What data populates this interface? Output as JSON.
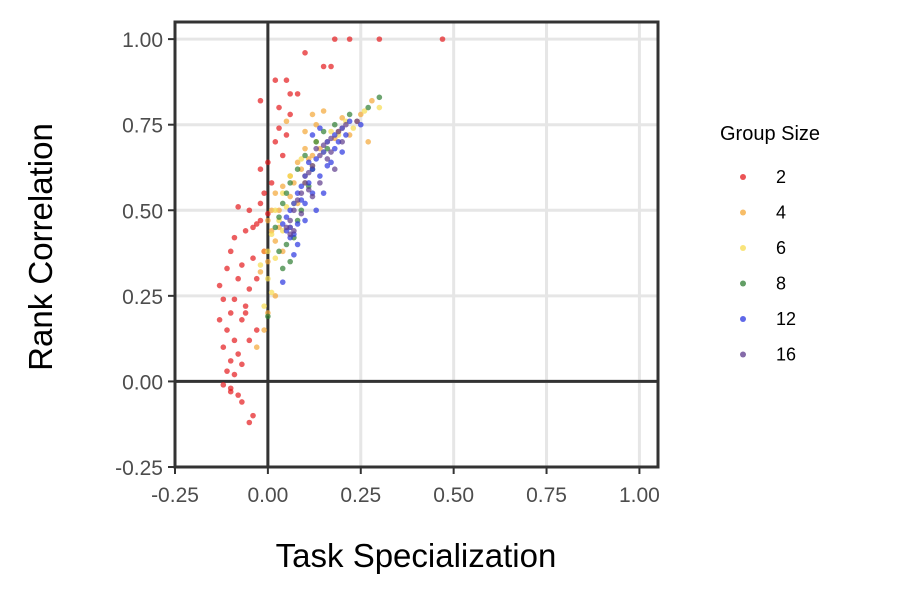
{
  "chart_data": {
    "type": "scatter",
    "xlabel": "Task Specialization",
    "ylabel": "Rank Correlation",
    "xlim": [
      -0.25,
      1.05
    ],
    "ylim": [
      -0.25,
      1.05
    ],
    "x_ticks": [
      "-0.25",
      "0.00",
      "0.25",
      "0.50",
      "0.75",
      "1.00"
    ],
    "y_ticks": [
      "-0.25",
      "0.00",
      "0.25",
      "0.50",
      "0.75",
      "1.00"
    ],
    "x_tick_values": [
      -0.25,
      0,
      0.25,
      0.5,
      0.75,
      1.0
    ],
    "y_tick_values": [
      -0.25,
      0,
      0.25,
      0.5,
      0.75,
      1.0
    ],
    "grid": true,
    "reference_lines": {
      "x": 0,
      "y": 0
    },
    "legend": {
      "title": "Group Size",
      "position": "right"
    },
    "series": [
      {
        "name": "2",
        "color": "#E41A1C",
        "points": [
          [
            0.18,
            1.0
          ],
          [
            0.22,
            1.0
          ],
          [
            0.3,
            1.0
          ],
          [
            0.47,
            1.0
          ],
          [
            0.1,
            0.96
          ],
          [
            0.15,
            0.92
          ],
          [
            0.17,
            0.92
          ],
          [
            0.02,
            0.88
          ],
          [
            0.05,
            0.88
          ],
          [
            0.06,
            0.84
          ],
          [
            0.08,
            0.84
          ],
          [
            -0.02,
            0.82
          ],
          [
            0.03,
            0.8
          ],
          [
            0.06,
            0.78
          ],
          [
            0.03,
            0.74
          ],
          [
            0.05,
            0.72
          ],
          [
            0.02,
            0.7
          ],
          [
            0.04,
            0.66
          ],
          [
            0.0,
            0.64
          ],
          [
            -0.02,
            0.62
          ],
          [
            0.01,
            0.58
          ],
          [
            -0.01,
            0.55
          ],
          [
            -0.08,
            0.51
          ],
          [
            -0.05,
            0.5
          ],
          [
            -0.02,
            0.52
          ],
          [
            0.0,
            0.49
          ],
          [
            -0.03,
            0.46
          ],
          [
            -0.06,
            0.44
          ],
          [
            -0.09,
            0.42
          ],
          [
            -0.1,
            0.38
          ],
          [
            -0.04,
            0.36
          ],
          [
            -0.07,
            0.34
          ],
          [
            -0.11,
            0.33
          ],
          [
            -0.08,
            0.3
          ],
          [
            -0.05,
            0.27
          ],
          [
            -0.12,
            0.24
          ],
          [
            -0.09,
            0.24
          ],
          [
            -0.06,
            0.22
          ],
          [
            -0.1,
            0.2
          ],
          [
            -0.13,
            0.18
          ],
          [
            -0.07,
            0.18
          ],
          [
            -0.11,
            0.15
          ],
          [
            -0.09,
            0.12
          ],
          [
            -0.05,
            0.12
          ],
          [
            -0.12,
            0.1
          ],
          [
            -0.08,
            0.08
          ],
          [
            -0.1,
            0.06
          ],
          [
            -0.07,
            0.05
          ],
          [
            -0.11,
            0.03
          ],
          [
            -0.09,
            0.02
          ],
          [
            -0.12,
            -0.01
          ],
          [
            -0.1,
            -0.03
          ],
          [
            -0.08,
            -0.04
          ],
          [
            -0.07,
            -0.06
          ],
          [
            -0.1,
            -0.02
          ],
          [
            -0.04,
            -0.1
          ],
          [
            -0.05,
            -0.12
          ],
          [
            -0.06,
            0.2
          ],
          [
            -0.03,
            0.3
          ],
          [
            -0.04,
            0.45
          ],
          [
            -0.02,
            0.47
          ],
          [
            -0.01,
            0.38
          ],
          [
            -0.13,
            0.28
          ],
          [
            -0.03,
            0.15
          ]
        ]
      },
      {
        "name": "4",
        "color": "#F4A736",
        "points": [
          [
            0.05,
            0.76
          ],
          [
            0.1,
            0.73
          ],
          [
            0.12,
            0.78
          ],
          [
            0.15,
            0.79
          ],
          [
            0.2,
            0.77
          ],
          [
            0.25,
            0.78
          ],
          [
            0.28,
            0.82
          ],
          [
            0.27,
            0.7
          ],
          [
            0.22,
            0.72
          ],
          [
            0.18,
            0.71
          ],
          [
            0.13,
            0.75
          ],
          [
            0.1,
            0.68
          ],
          [
            0.08,
            0.64
          ],
          [
            0.06,
            0.6
          ],
          [
            0.04,
            0.57
          ],
          [
            0.02,
            0.55
          ],
          [
            0.01,
            0.5
          ],
          [
            0.0,
            0.47
          ],
          [
            0.03,
            0.45
          ],
          [
            0.02,
            0.41
          ],
          [
            -0.01,
            0.38
          ],
          [
            0.0,
            0.35
          ],
          [
            -0.02,
            0.32
          ],
          [
            -0.03,
            0.1
          ],
          [
            -0.01,
            0.15
          ],
          [
            0.0,
            0.2
          ],
          [
            0.02,
            0.25
          ],
          [
            0.04,
            0.38
          ],
          [
            0.06,
            0.45
          ],
          [
            0.08,
            0.52
          ],
          [
            0.1,
            0.6
          ],
          [
            0.12,
            0.66
          ],
          [
            0.16,
            0.7
          ],
          [
            0.2,
            0.74
          ],
          [
            0.14,
            0.68
          ],
          [
            0.07,
            0.58
          ],
          [
            0.03,
            0.5
          ],
          [
            0.01,
            0.44
          ],
          [
            0.09,
            0.62
          ],
          [
            0.11,
            0.65
          ],
          [
            0.24,
            0.76
          ],
          [
            0.19,
            0.73
          ],
          [
            0.06,
            0.54
          ]
        ]
      },
      {
        "name": "6",
        "color": "#F7DB4F",
        "points": [
          [
            0.23,
            0.74
          ],
          [
            0.26,
            0.79
          ],
          [
            0.21,
            0.76
          ],
          [
            0.17,
            0.73
          ],
          [
            0.13,
            0.7
          ],
          [
            0.09,
            0.65
          ],
          [
            0.06,
            0.6
          ],
          [
            0.04,
            0.55
          ],
          [
            0.02,
            0.5
          ],
          [
            0.01,
            0.43
          ],
          [
            0.0,
            0.38
          ],
          [
            -0.02,
            0.34
          ],
          [
            0.0,
            0.3
          ],
          [
            0.01,
            0.26
          ],
          [
            -0.01,
            0.22
          ],
          [
            0.02,
            0.36
          ],
          [
            0.04,
            0.44
          ],
          [
            0.07,
            0.52
          ],
          [
            0.1,
            0.58
          ],
          [
            0.12,
            0.63
          ],
          [
            0.15,
            0.67
          ],
          [
            0.19,
            0.72
          ],
          [
            0.3,
            0.8
          ],
          [
            0.03,
            0.47
          ],
          [
            0.05,
            0.51
          ]
        ]
      },
      {
        "name": "8",
        "color": "#2E7D32",
        "points": [
          [
            0.3,
            0.83
          ],
          [
            0.27,
            0.8
          ],
          [
            0.22,
            0.78
          ],
          [
            0.18,
            0.75
          ],
          [
            0.15,
            0.73
          ],
          [
            0.13,
            0.7
          ],
          [
            0.1,
            0.66
          ],
          [
            0.08,
            0.62
          ],
          [
            0.06,
            0.58
          ],
          [
            0.05,
            0.55
          ],
          [
            0.04,
            0.52
          ],
          [
            0.03,
            0.48
          ],
          [
            0.02,
            0.45
          ],
          [
            0.05,
            0.4
          ],
          [
            0.07,
            0.42
          ],
          [
            0.09,
            0.5
          ],
          [
            0.11,
            0.57
          ],
          [
            0.06,
            0.35
          ],
          [
            0.04,
            0.33
          ],
          [
            0.0,
            0.19
          ],
          [
            0.12,
            0.62
          ],
          [
            0.16,
            0.68
          ],
          [
            0.03,
            0.38
          ],
          [
            0.08,
            0.47
          ]
        ]
      },
      {
        "name": "12",
        "color": "#2A35E0",
        "points": [
          [
            0.25,
            0.75
          ],
          [
            0.22,
            0.76
          ],
          [
            0.2,
            0.74
          ],
          [
            0.18,
            0.72
          ],
          [
            0.16,
            0.7
          ],
          [
            0.15,
            0.67
          ],
          [
            0.13,
            0.65
          ],
          [
            0.12,
            0.62
          ],
          [
            0.1,
            0.6
          ],
          [
            0.09,
            0.57
          ],
          [
            0.08,
            0.55
          ],
          [
            0.07,
            0.52
          ],
          [
            0.06,
            0.5
          ],
          [
            0.05,
            0.48
          ],
          [
            0.06,
            0.45
          ],
          [
            0.07,
            0.43
          ],
          [
            0.08,
            0.46
          ],
          [
            0.1,
            0.52
          ],
          [
            0.12,
            0.55
          ],
          [
            0.14,
            0.6
          ],
          [
            0.16,
            0.63
          ],
          [
            0.18,
            0.68
          ],
          [
            0.11,
            0.58
          ],
          [
            0.09,
            0.53
          ],
          [
            0.06,
            0.42
          ],
          [
            0.05,
            0.44
          ],
          [
            0.04,
            0.46
          ],
          [
            0.13,
            0.5
          ],
          [
            0.15,
            0.55
          ],
          [
            0.17,
            0.64
          ],
          [
            0.19,
            0.7
          ],
          [
            0.21,
            0.72
          ],
          [
            0.12,
            0.72
          ],
          [
            0.14,
            0.74
          ],
          [
            0.08,
            0.4
          ],
          [
            0.04,
            0.29
          ],
          [
            0.07,
            0.37
          ],
          [
            0.1,
            0.47
          ],
          [
            0.11,
            0.64
          ],
          [
            0.2,
            0.67
          ]
        ]
      },
      {
        "name": "16",
        "color": "#5C3A8C",
        "points": [
          [
            0.24,
            0.76
          ],
          [
            0.21,
            0.75
          ],
          [
            0.19,
            0.73
          ],
          [
            0.17,
            0.71
          ],
          [
            0.15,
            0.69
          ],
          [
            0.14,
            0.66
          ],
          [
            0.12,
            0.63
          ],
          [
            0.11,
            0.61
          ],
          [
            0.1,
            0.58
          ],
          [
            0.09,
            0.55
          ],
          [
            0.08,
            0.53
          ],
          [
            0.07,
            0.5
          ],
          [
            0.06,
            0.47
          ],
          [
            0.05,
            0.45
          ],
          [
            0.13,
            0.68
          ],
          [
            0.16,
            0.65
          ],
          [
            0.18,
            0.62
          ],
          [
            0.11,
            0.56
          ],
          [
            0.09,
            0.49
          ],
          [
            0.07,
            0.44
          ],
          [
            0.06,
            0.43
          ],
          [
            0.14,
            0.58
          ],
          [
            0.12,
            0.54
          ],
          [
            0.2,
            0.7
          ],
          [
            0.17,
            0.67
          ]
        ]
      }
    ]
  }
}
